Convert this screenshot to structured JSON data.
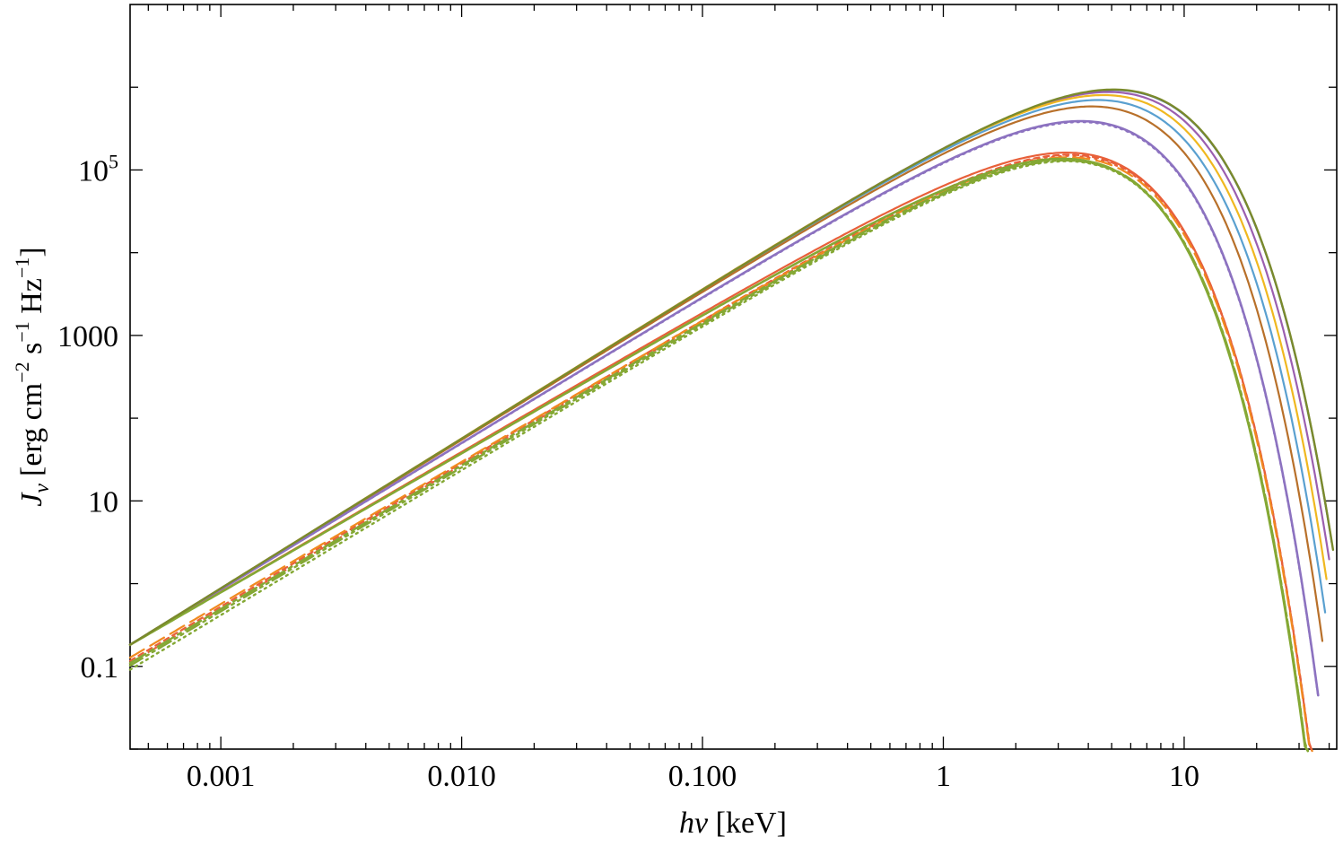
{
  "chart_data": {
    "type": "line",
    "x_scale": "log",
    "y_scale": "log",
    "xlim": [
      0.00042,
      43
    ],
    "ylim": [
      0.01,
      10000000
    ],
    "xlabel": {
      "prefix": "h",
      "italic": "ν",
      "suffix": " [keV]"
    },
    "ylabel": {
      "symbol": "J",
      "sub": "ν",
      "units": "[erg cm",
      "exp1": "−2",
      "s": " s",
      "exp2": "−1",
      "hz": " Hz",
      "exp3": "−1",
      "close": "]"
    },
    "x_ticks": [
      {
        "value": 0.001,
        "label": "0.001"
      },
      {
        "value": 0.01,
        "label": "0.010"
      },
      {
        "value": 0.1,
        "label": "0.100"
      },
      {
        "value": 1,
        "label": "1"
      },
      {
        "value": 10,
        "label": "10"
      }
    ],
    "y_ticks": [
      {
        "value": 0.01,
        "label": ""
      },
      {
        "value": 0.1,
        "label": "0.1"
      },
      {
        "value": 10,
        "label": "10"
      },
      {
        "value": 1000,
        "label": "1000"
      },
      {
        "value": 100000,
        "label": "10",
        "sup": "5"
      }
    ],
    "series": [
      {
        "color": "#4b6bb0",
        "dash": "",
        "width": 2.2,
        "low_x": 0.00042,
        "low_y": 0.05,
        "slope": 2.0,
        "peak_x": 4.3,
        "peak_y": 900000,
        "cutoff_x": 41
      },
      {
        "color": "#9b5fb0",
        "dash": "",
        "width": 2.2,
        "low_x": 0.00042,
        "low_y": 0.05,
        "slope": 2.0,
        "peak_x": 4.1,
        "peak_y": 850000,
        "cutoff_x": 40
      },
      {
        "color": "#f0b820",
        "dash": "",
        "width": 2.2,
        "low_x": 0.00042,
        "low_y": 0.05,
        "slope": 2.0,
        "peak_x": 3.9,
        "peak_y": 780000,
        "cutoff_x": 39
      },
      {
        "color": "#5aa0d0",
        "dash": "",
        "width": 2.2,
        "low_x": 0.00042,
        "low_y": 0.05,
        "slope": 2.0,
        "peak_x": 3.7,
        "peak_y": 680000,
        "cutoff_x": 38.5
      },
      {
        "color": "#b8702a",
        "dash": "",
        "width": 2.2,
        "low_x": 0.00042,
        "low_y": 0.05,
        "slope": 2.0,
        "peak_x": 3.5,
        "peak_y": 570000,
        "cutoff_x": 37.5
      },
      {
        "color": "#8c72c0",
        "dash": "",
        "width": 2.6,
        "low_x": 0.00042,
        "low_y": 0.05,
        "slope": 2.0,
        "peak_x": 3.2,
        "peak_y": 380000,
        "cutoff_x": 36
      },
      {
        "color": "#8c72c0",
        "dash": "2 5",
        "width": 2.2,
        "low_x": 0.00042,
        "low_y": 0.05,
        "slope": 2.0,
        "peak_x": 3.2,
        "peak_y": 370000,
        "cutoff_x": 36
      },
      {
        "color": "#e8603a",
        "dash": "",
        "width": 2.2,
        "low_x": 0.00042,
        "low_y": 0.05,
        "slope": 2.0,
        "peak_x": 2.9,
        "peak_y": 160000,
        "cutoff_x": 34
      },
      {
        "color": "#e8603a",
        "dash": "6 5",
        "width": 2.2,
        "low_x": 0.00042,
        "low_y": 0.032,
        "slope": 2.0,
        "peak_x": 2.9,
        "peak_y": 150000,
        "cutoff_x": 34
      },
      {
        "color": "#e8603a",
        "dash": "2 6",
        "width": 2.2,
        "low_x": 0.00042,
        "low_y": 0.03,
        "slope": 2.0,
        "peak_x": 2.9,
        "peak_y": 145000,
        "cutoff_x": 34
      },
      {
        "color": "#f08a20",
        "dash": "18 8",
        "width": 2.2,
        "low_x": 0.00042,
        "low_y": 0.035,
        "slope": 2.0,
        "peak_x": 2.9,
        "peak_y": 140000,
        "cutoff_x": 34
      },
      {
        "color": "#84a834",
        "dash": "",
        "width": 2.6,
        "low_x": 0.00042,
        "low_y": 0.05,
        "slope": 2.0,
        "peak_x": 2.8,
        "peak_y": 135000,
        "cutoff_x": 33.5
      },
      {
        "color": "#84a834",
        "dash": "20 6 4 6",
        "width": 2.4,
        "low_x": 0.00042,
        "low_y": 0.03,
        "slope": 2.0,
        "peak_x": 2.8,
        "peak_y": 132000,
        "cutoff_x": 33.5
      },
      {
        "color": "#84a834",
        "dash": "16 5 3 5 3 5",
        "width": 2.4,
        "low_x": 0.00042,
        "low_y": 0.028,
        "slope": 2.0,
        "peak_x": 2.8,
        "peak_y": 128000,
        "cutoff_x": 33.5
      },
      {
        "color": "#84a834",
        "dash": "2 5",
        "width": 2.4,
        "low_x": 0.00042,
        "low_y": 0.025,
        "slope": 2.0,
        "peak_x": 2.8,
        "peak_y": 125000,
        "cutoff_x": 33.5
      },
      {
        "color": "#7a8a2c",
        "dash": "",
        "width": 2.4,
        "low_x": 0.00042,
        "low_y": 0.05,
        "slope": 2.0,
        "peak_x": 4.3,
        "peak_y": 910000,
        "cutoff_x": 41.5
      }
    ]
  }
}
